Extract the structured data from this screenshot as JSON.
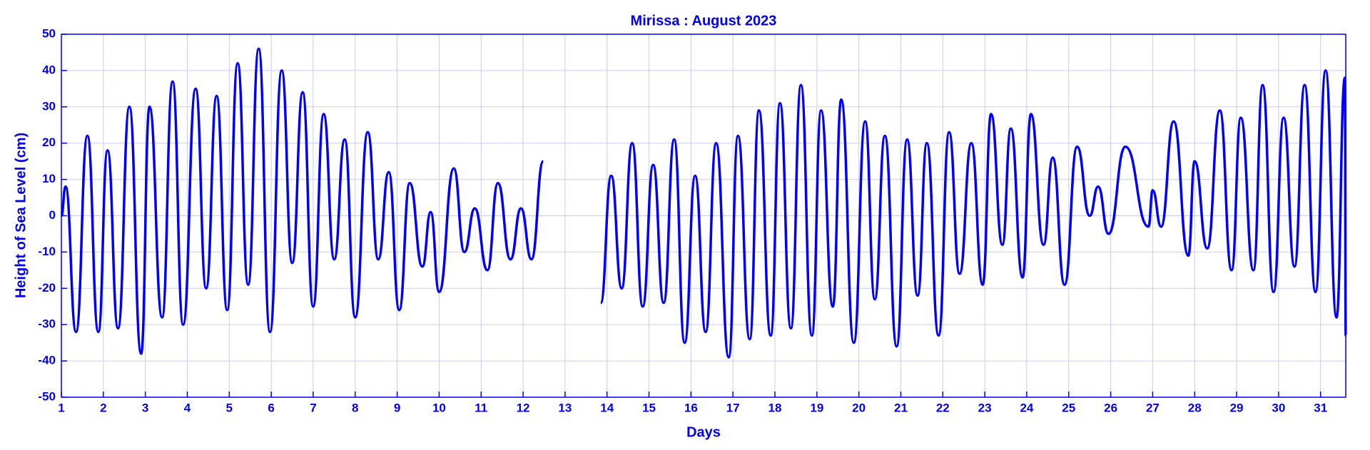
{
  "chart_data": {
    "type": "line",
    "title": "Mirissa : August 2023",
    "x_label": "Days",
    "y_label": "Height of Sea Level (cm)",
    "xlim": [
      1,
      31.6
    ],
    "ylim": [
      -50,
      50
    ],
    "xticks": [
      1,
      2,
      3,
      4,
      5,
      6,
      7,
      8,
      9,
      10,
      11,
      12,
      13,
      14,
      15,
      16,
      17,
      18,
      19,
      20,
      21,
      22,
      23,
      24,
      25,
      26,
      27,
      28,
      29,
      30,
      31
    ],
    "yticks": [
      -50,
      -40,
      -30,
      -20,
      -10,
      0,
      10,
      20,
      30,
      40,
      50
    ],
    "grid": true,
    "series": [
      {
        "name": "Height of Sea Level",
        "color": "#0000ff",
        "x": [
          1.0,
          1.1,
          1.35,
          1.62,
          1.88,
          2.1,
          2.35,
          2.62,
          2.9,
          3.1,
          3.4,
          3.65,
          3.9,
          4.2,
          4.45,
          4.7,
          4.95,
          5.2,
          5.45,
          5.7,
          5.97,
          6.25,
          6.5,
          6.75,
          7.0,
          7.25,
          7.5,
          7.75,
          8.0,
          8.3,
          8.55,
          8.8,
          9.05,
          9.3,
          9.6,
          9.8,
          10.0,
          10.35,
          10.6,
          10.85,
          11.15,
          11.4,
          11.7,
          11.95,
          12.2,
          12.48,
          13.0,
          13.85,
          14.1,
          14.35,
          14.6,
          14.85,
          15.1,
          15.35,
          15.6,
          15.85,
          16.1,
          16.35,
          16.6,
          16.9,
          17.12,
          17.4,
          17.62,
          17.9,
          18.12,
          18.38,
          18.62,
          18.88,
          19.1,
          19.38,
          19.58,
          19.88,
          20.15,
          20.38,
          20.62,
          20.9,
          21.15,
          21.4,
          21.62,
          21.9,
          22.15,
          22.4,
          22.68,
          22.95,
          23.15,
          23.42,
          23.62,
          23.9,
          24.1,
          24.4,
          24.62,
          24.9,
          25.2,
          25.5,
          25.7,
          25.95,
          26.35,
          26.9,
          27.0,
          27.2,
          27.5,
          27.85,
          28.0,
          28.3,
          28.6,
          28.88,
          29.1,
          29.4,
          29.62,
          29.88,
          30.12,
          30.38,
          30.62,
          30.88,
          31.12,
          31.38,
          31.58,
          31.6
        ],
        "values": [
          0,
          8,
          -32,
          22,
          -32,
          18,
          -31,
          30,
          -38,
          30,
          -28,
          37,
          -30,
          35,
          -20,
          33,
          -26,
          42,
          -19,
          46,
          -32,
          40,
          -13,
          34,
          -25,
          28,
          -12,
          21,
          -28,
          23,
          -12,
          12,
          -26,
          9,
          -14,
          1,
          -21,
          13,
          -10,
          2,
          -15,
          9,
          -12,
          2,
          -12,
          15,
          null,
          -24,
          11,
          -20,
          20,
          -25,
          14,
          -24,
          21,
          -35,
          11,
          -32,
          20,
          -39,
          22,
          -34,
          29,
          -33,
          31,
          -31,
          36,
          -33,
          29,
          -25,
          32,
          -35,
          26,
          -23,
          22,
          -36,
          21,
          -22,
          20,
          -33,
          23,
          -16,
          20,
          -19,
          28,
          -8,
          24,
          -17,
          28,
          -8,
          16,
          -19,
          19,
          0,
          8,
          -5,
          19,
          -3,
          7,
          -3,
          26,
          -11,
          15,
          -9,
          29,
          -15,
          27,
          -15,
          36,
          -21,
          27,
          -14,
          36,
          -21,
          40,
          -28,
          38,
          -33
        ]
      }
    ]
  }
}
